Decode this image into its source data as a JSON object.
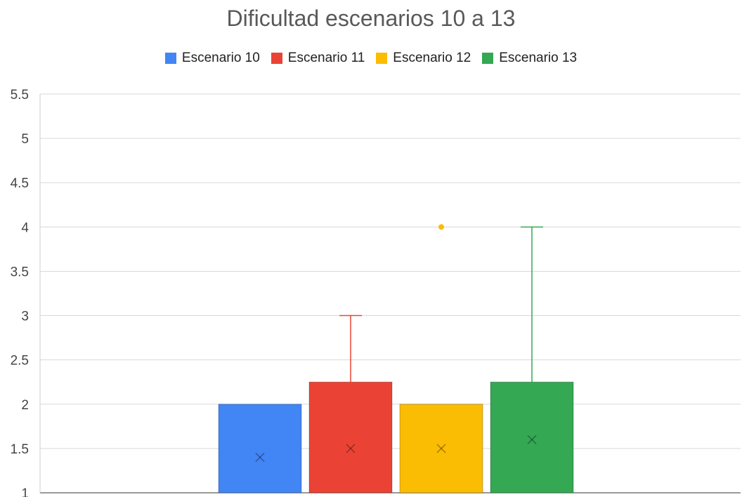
{
  "chart_data": {
    "type": "box",
    "title": "Dificultad escenarios 10 a 13",
    "xlabel": "",
    "ylabel": "",
    "ylim": [
      1,
      5.5
    ],
    "yticks": [
      "1",
      "1.5",
      "2",
      "2.5",
      "3",
      "3.5",
      "4",
      "4.5",
      "5",
      "5.5"
    ],
    "grid": true,
    "legend_position": "top",
    "series": [
      {
        "name": "Escenario 10",
        "color": "#4285F4",
        "box_low": 1,
        "box_high": 2,
        "whisker_low": 1,
        "whisker_high": 2,
        "mean": 1.4,
        "outliers": []
      },
      {
        "name": "Escenario 11",
        "color": "#EA4335",
        "box_low": 1,
        "box_high": 2.25,
        "whisker_low": 1,
        "whisker_high": 3,
        "mean": 1.5,
        "outliers": []
      },
      {
        "name": "Escenario 12",
        "color": "#FBBC04",
        "box_low": 1,
        "box_high": 2,
        "whisker_low": 1,
        "whisker_high": 2,
        "mean": 1.5,
        "outliers": [
          4
        ]
      },
      {
        "name": "Escenario 13",
        "color": "#34A853",
        "box_low": 1,
        "box_high": 2.25,
        "whisker_low": 1,
        "whisker_high": 4,
        "mean": 1.6,
        "outliers": []
      }
    ]
  }
}
